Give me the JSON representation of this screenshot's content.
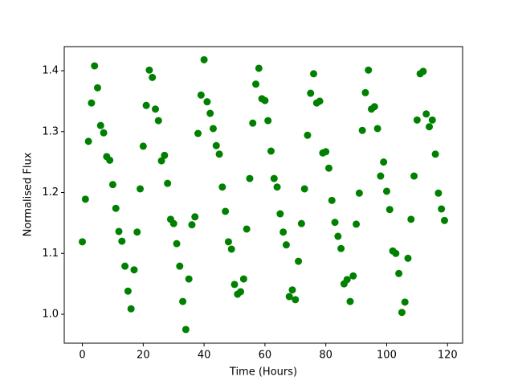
{
  "chart_data": {
    "type": "scatter",
    "x_label": "Time (Hours)",
    "y_label": "Normalised Flux",
    "x": [
      0,
      1,
      2,
      3,
      4,
      5,
      6,
      7,
      8,
      9,
      10,
      11,
      12,
      13,
      14,
      15,
      16,
      17,
      18,
      19,
      20,
      21,
      22,
      23,
      24,
      25,
      26,
      27,
      28,
      29,
      30,
      31,
      32,
      33,
      34,
      35,
      36,
      37,
      38,
      39,
      40,
      41,
      42,
      43,
      44,
      45,
      46,
      47,
      48,
      49,
      50,
      51,
      52,
      53,
      54,
      55,
      56,
      57,
      58,
      59,
      60,
      61,
      62,
      63,
      64,
      65,
      66,
      67,
      68,
      69,
      70,
      71,
      72,
      73,
      74,
      75,
      76,
      77,
      78,
      79,
      80,
      81,
      82,
      83,
      84,
      85,
      86,
      87,
      88,
      89,
      90,
      91,
      92,
      93,
      94,
      95,
      96,
      97,
      98,
      99,
      100,
      101,
      102,
      103,
      104,
      105,
      106,
      107,
      108,
      109,
      110,
      111,
      112,
      113,
      114,
      115,
      116,
      117,
      118,
      119
    ],
    "values": [
      1.119,
      1.189,
      1.284,
      1.347,
      1.408,
      1.372,
      1.31,
      1.298,
      1.259,
      1.253,
      1.213,
      1.174,
      1.136,
      1.12,
      1.079,
      1.038,
      1.009,
      1.073,
      1.135,
      1.206,
      1.276,
      1.343,
      1.401,
      1.389,
      1.337,
      1.318,
      1.252,
      1.261,
      1.215,
      1.156,
      1.149,
      1.116,
      1.079,
      1.021,
      0.975,
      1.058,
      1.147,
      1.16,
      1.297,
      1.36,
      1.418,
      1.349,
      1.33,
      1.305,
      1.277,
      1.263,
      1.209,
      1.169,
      1.119,
      1.107,
      1.049,
      1.033,
      1.037,
      1.058,
      1.14,
      1.223,
      1.314,
      1.378,
      1.404,
      1.354,
      1.351,
      1.318,
      1.268,
      1.223,
      1.209,
      1.165,
      1.135,
      1.114,
      1.029,
      1.04,
      1.024,
      1.087,
      1.149,
      1.206,
      1.294,
      1.363,
      1.395,
      1.347,
      1.35,
      1.265,
      1.267,
      1.24,
      1.187,
      1.151,
      1.128,
      1.108,
      1.05,
      1.057,
      1.021,
      1.063,
      1.148,
      1.199,
      1.302,
      1.364,
      1.401,
      1.337,
      1.341,
      1.305,
      1.227,
      1.25,
      1.202,
      1.172,
      1.104,
      1.1,
      1.067,
      1.003,
      1.02,
      1.092,
      1.156,
      1.227,
      1.319,
      1.395,
      1.399,
      1.329,
      1.308,
      1.319,
      1.263,
      1.199,
      1.173,
      1.154
    ],
    "color": "#008000",
    "xlim": [
      -5.95,
      124.95
    ],
    "xticks": [
      0,
      20,
      40,
      60,
      80,
      100,
      120
    ],
    "ylim": [
      0.9525,
      1.4396
    ],
    "yticks": [
      {
        "value": 1,
        "label": "1.0"
      },
      1.1,
      1.2,
      1.3,
      1.4
    ]
  }
}
